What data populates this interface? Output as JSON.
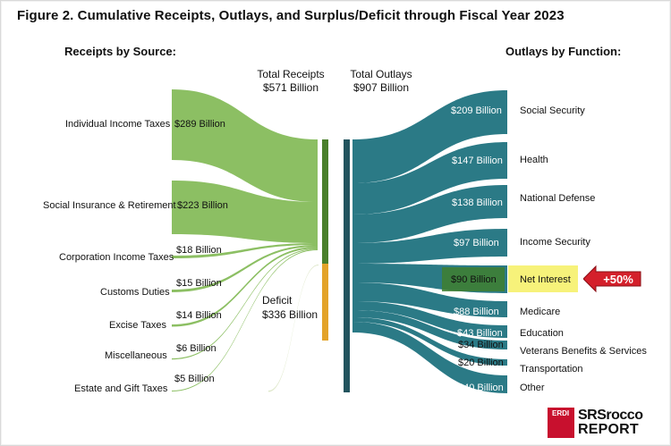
{
  "title": "Figure 2. Cumulative Receipts, Outlays, and Surplus/Deficit through Fiscal Year 2023",
  "receipts_header": "Receipts by Source:",
  "outlays_header": "Outlays by Function:",
  "total_receipts": {
    "label": "Total Receipts",
    "value": "$571 Billion"
  },
  "total_outlays": {
    "label": "Total Outlays",
    "value": "$907 Billion"
  },
  "deficit": {
    "label": "Deficit",
    "value": "$336 Billion"
  },
  "colors": {
    "receipts": "#8cbf63",
    "outlays": "#2b7a86",
    "receipts_bar": "#4a7f2b",
    "deficit_bar": "#e3a32a",
    "outlays_bar": "#22545e",
    "highlight": "#f7f27a",
    "badge": "#d4202b"
  },
  "receipts": [
    {
      "name": "Individual Income Taxes",
      "value": "$289 Billion"
    },
    {
      "name": "Social Insurance & Retirement",
      "value": "$223 Billion"
    },
    {
      "name": "Corporation Income Taxes",
      "value": "$18 Billion"
    },
    {
      "name": "Customs Duties",
      "value": "$15 Billion"
    },
    {
      "name": "Excise Taxes",
      "value": "$14 Billion"
    },
    {
      "name": "Miscellaneous",
      "value": "$6 Billion"
    },
    {
      "name": "Estate and Gift Taxes",
      "value": "$5 Billion"
    }
  ],
  "outlays": [
    {
      "name": "Social Security",
      "value": "$209 Billion"
    },
    {
      "name": "Health",
      "value": "$147 Billion"
    },
    {
      "name": "National Defense",
      "value": "$138 Billion"
    },
    {
      "name": "Income Security",
      "value": "$97 Billion"
    },
    {
      "name": "Net Interest",
      "value": "$90 Billion"
    },
    {
      "name": "Medicare",
      "value": "$88 Billion"
    },
    {
      "name": "Education",
      "value": "$43 Billion"
    },
    {
      "name": "Veterans Benefits & Services",
      "value": "$34 Billion"
    },
    {
      "name": "Transportation",
      "value": "$20 Billion"
    },
    {
      "name": "Other",
      "value": "$40 Billion"
    }
  ],
  "callout": "+50%",
  "logo": {
    "mark": "ERDI",
    "line1": "SRSrocco",
    "line2": "REPORT"
  }
}
